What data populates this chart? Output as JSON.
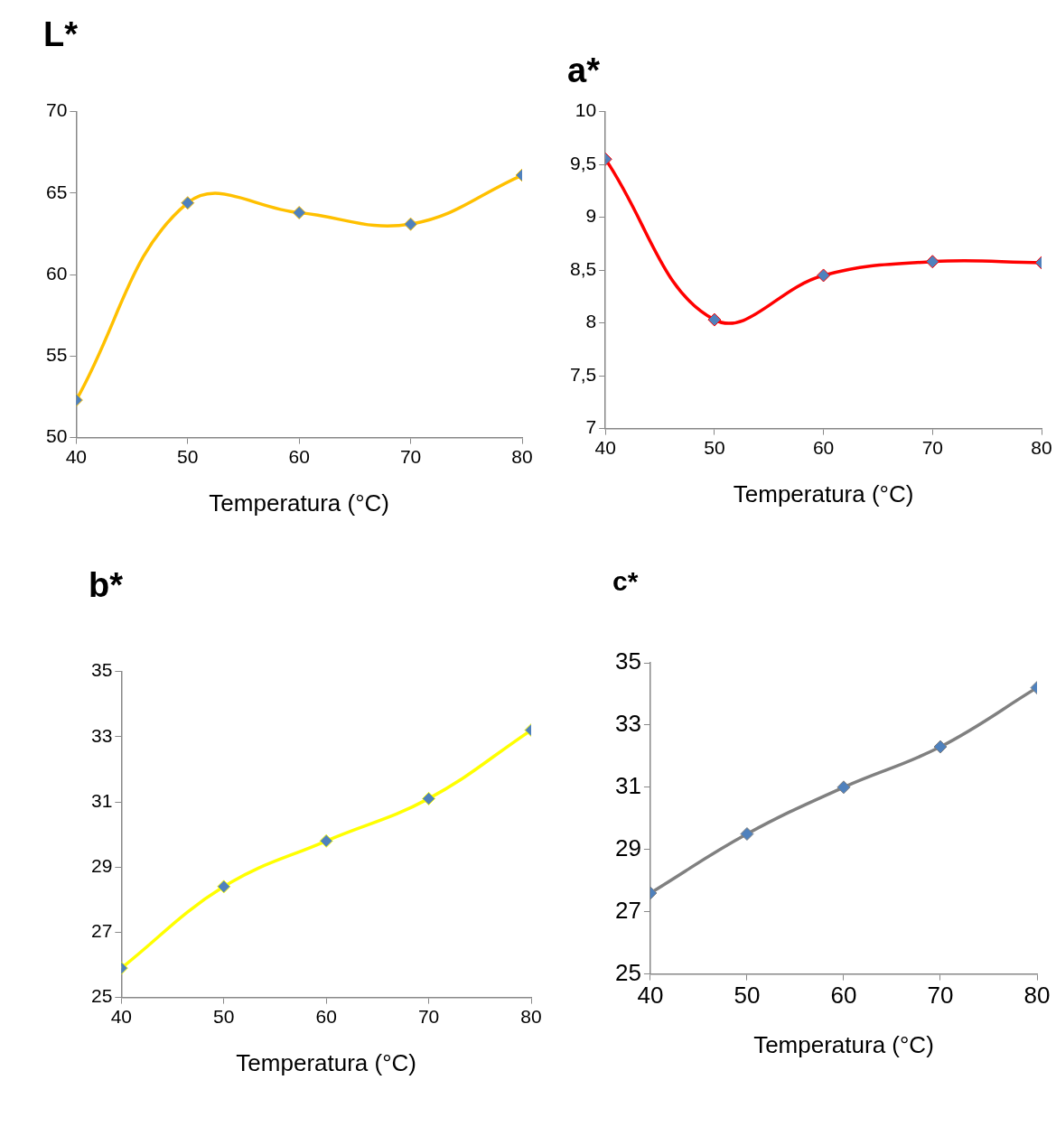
{
  "chart_data": [
    {
      "type": "line",
      "title": "L*",
      "xlabel": "Temperatura (°C)",
      "x": [
        40,
        50,
        60,
        70,
        80
      ],
      "xlim": [
        40,
        80
      ],
      "xticks": [
        40,
        50,
        60,
        70,
        80
      ],
      "ylim": [
        50,
        70
      ],
      "yticks": [
        50,
        55,
        60,
        65,
        70
      ],
      "grid": false,
      "legend": false,
      "marker": "diamond",
      "line_style": "solid",
      "series": [
        {
          "color": "#ffc000",
          "values": [
            52.3,
            64.4,
            63.8,
            63.1,
            66.1
          ]
        }
      ]
    },
    {
      "type": "line",
      "title": "a*",
      "xlabel": "Temperatura (°C)",
      "x": [
        40,
        50,
        60,
        70,
        80
      ],
      "xlim": [
        40,
        80
      ],
      "xticks": [
        40,
        50,
        60,
        70,
        80
      ],
      "ylim": [
        7,
        10
      ],
      "yticks": [
        7,
        {
          "value": 7.5,
          "label": "7,5"
        },
        8,
        {
          "value": 8.5,
          "label": "8,5"
        },
        9,
        {
          "value": 9.5,
          "label": "9,5"
        },
        10
      ],
      "grid": false,
      "legend": false,
      "marker": "diamond",
      "line_style": "solid",
      "series": [
        {
          "color": "#ff0000",
          "values": [
            9.55,
            8.03,
            8.45,
            8.58,
            8.57
          ]
        }
      ]
    },
    {
      "type": "line",
      "title": "b*",
      "xlabel": "Temperatura (°C)",
      "x": [
        40,
        50,
        60,
        70,
        80
      ],
      "xlim": [
        40,
        80
      ],
      "xticks": [
        40,
        50,
        60,
        70,
        80
      ],
      "ylim": [
        25,
        35
      ],
      "yticks": [
        25,
        27,
        29,
        31,
        33,
        35
      ],
      "grid": false,
      "legend": false,
      "marker": "diamond",
      "line_style": "solid",
      "series": [
        {
          "color": "#ffff00",
          "values": [
            25.9,
            28.4,
            29.8,
            31.1,
            33.2
          ]
        }
      ]
    },
    {
      "type": "line",
      "title": "c*",
      "xlabel": "Temperatura (°C)",
      "x": [
        40,
        50,
        60,
        70,
        80
      ],
      "xlim": [
        40,
        80
      ],
      "xticks": [
        40,
        50,
        60,
        70,
        80
      ],
      "ylim": [
        25,
        35
      ],
      "yticks": [
        25,
        27,
        29,
        31,
        33,
        35
      ],
      "grid": false,
      "legend": false,
      "marker": "diamond",
      "line_style": "solid",
      "series": [
        {
          "color": "#808080",
          "values": [
            27.6,
            29.5,
            31.0,
            32.3,
            34.2
          ]
        }
      ]
    }
  ]
}
